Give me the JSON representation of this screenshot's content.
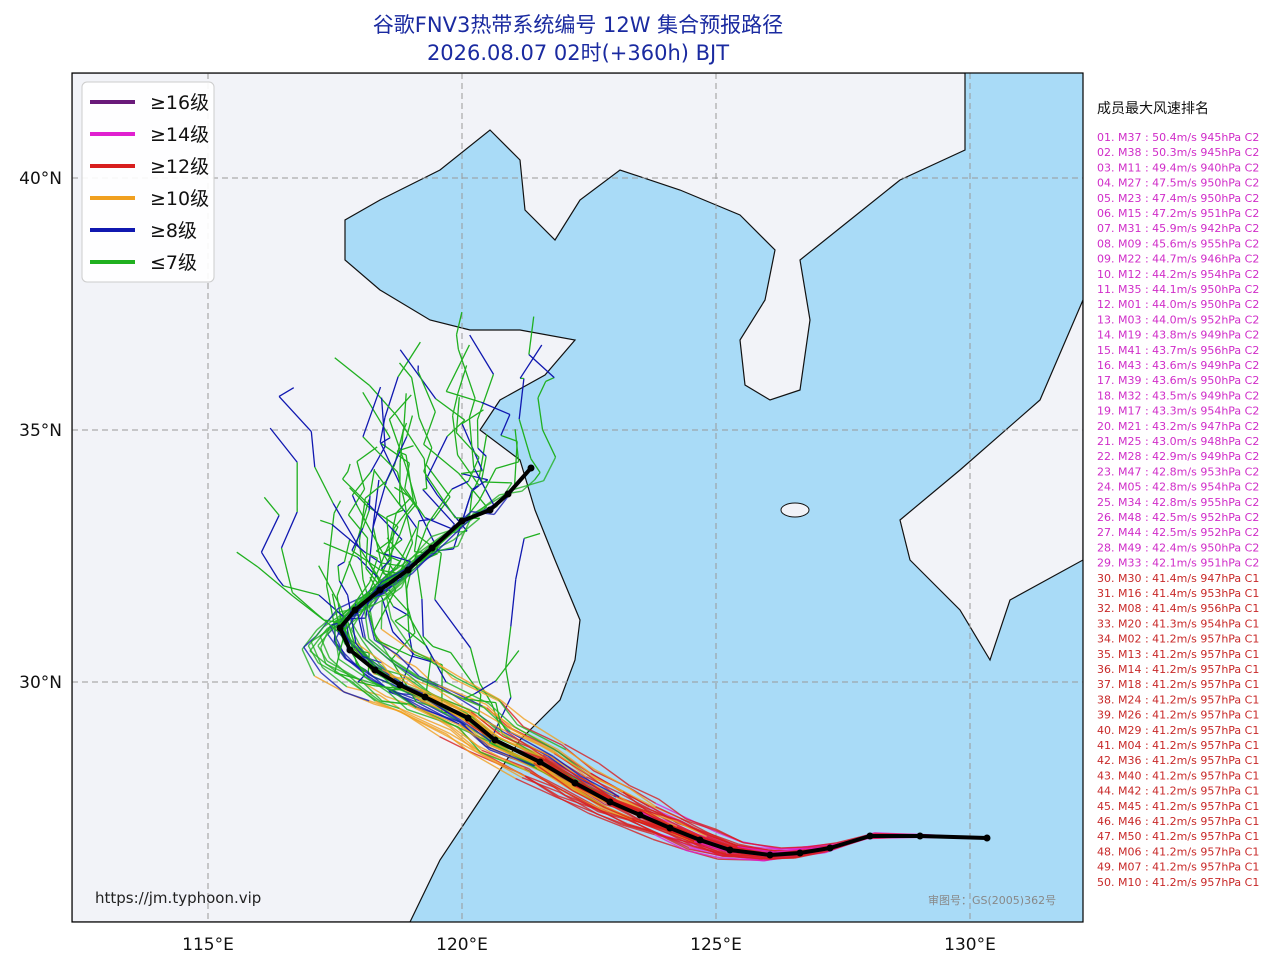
{
  "header": {
    "title": "谷歌FNV3热带系统编号 12W 集合预报路径",
    "subtitle": "2026.08.07 02时(+360h) BJT"
  },
  "legend": [
    {
      "label": "≥16级",
      "color": "#6a1a7a"
    },
    {
      "label": "≥14级",
      "color": "#e020d0"
    },
    {
      "label": "≥12级",
      "color": "#d81e1e"
    },
    {
      "label": "≥10级",
      "color": "#f0a020"
    },
    {
      "label": "≥8级",
      "color": "#1018b0"
    },
    {
      "label": "≤7级",
      "color": "#20b020"
    }
  ],
  "axes": {
    "lon_labels": [
      "115°E",
      "120°E",
      "125°E",
      "130°E"
    ],
    "lat_labels": [
      "40°N",
      "35°N",
      "30°N"
    ]
  },
  "ranking": {
    "title": "成员最大风速排名",
    "groups": [
      {
        "color": "#d02cc8",
        "items": [
          "01. M37 : 50.4m/s 945hPa C2",
          "02. M38 : 50.3m/s 945hPa C2",
          "03. M11 : 49.4m/s 940hPa C2",
          "04. M27 : 47.5m/s 950hPa C2",
          "05. M23 : 47.4m/s 950hPa C2",
          "06. M15 : 47.2m/s 951hPa C2",
          "07. M31 : 45.9m/s 942hPa C2",
          "08. M09 : 45.6m/s 955hPa C2",
          "09. M22 : 44.7m/s 946hPa C2",
          "10. M12 : 44.2m/s 954hPa C2",
          "11. M35 : 44.1m/s 950hPa C2",
          "12. M01 : 44.0m/s 950hPa C2",
          "13. M03 : 44.0m/s 952hPa C2",
          "14. M19 : 43.8m/s 949hPa C2",
          "15. M41 : 43.7m/s 956hPa C2",
          "16. M43 : 43.6m/s 949hPa C2",
          "17. M39 : 43.6m/s 950hPa C2",
          "18. M32 : 43.5m/s 949hPa C2",
          "19. M17 : 43.3m/s 954hPa C2",
          "20. M21 : 43.2m/s 947hPa C2",
          "21. M25 : 43.0m/s 948hPa C2",
          "22. M28 : 42.9m/s 949hPa C2",
          "23. M47 : 42.8m/s 953hPa C2",
          "24. M05 : 42.8m/s 954hPa C2",
          "25. M34 : 42.8m/s 955hPa C2",
          "26. M48 : 42.5m/s 952hPa C2",
          "27. M44 : 42.5m/s 952hPa C2",
          "28. M49 : 42.4m/s 950hPa C2",
          "29. M33 : 42.1m/s 951hPa C2"
        ]
      },
      {
        "color": "#c82828",
        "items": [
          "30. M30 : 41.4m/s 947hPa C1",
          "31. M16 : 41.4m/s 953hPa C1",
          "32. M08 : 41.4m/s 956hPa C1",
          "33. M20 : 41.3m/s 954hPa C1",
          "34. M02 : 41.2m/s 957hPa C1",
          "35. M13 : 41.2m/s 957hPa C1",
          "36. M14 : 41.2m/s 957hPa C1",
          "37. M18 : 41.2m/s 957hPa C1",
          "38. M24 : 41.2m/s 957hPa C1",
          "39. M26 : 41.2m/s 957hPa C1",
          "40. M29 : 41.2m/s 957hPa C1",
          "41. M04 : 41.2m/s 957hPa C1",
          "42. M36 : 41.2m/s 957hPa C1",
          "43. M40 : 41.2m/s 957hPa C1",
          "44. M42 : 41.2m/s 957hPa C1",
          "45. M45 : 41.2m/s 957hPa C1",
          "46. M46 : 41.2m/s 957hPa C1",
          "47. M50 : 41.2m/s 957hPa C1",
          "48. M06 : 41.2m/s 957hPa C1",
          "49. M07 : 41.2m/s 957hPa C1",
          "50. M10 : 41.2m/s 957hPa C1"
        ]
      }
    ]
  },
  "footer": {
    "url": "https://jm.typhoon.vip",
    "approval": "审图号：GS(2005)362号"
  }
}
